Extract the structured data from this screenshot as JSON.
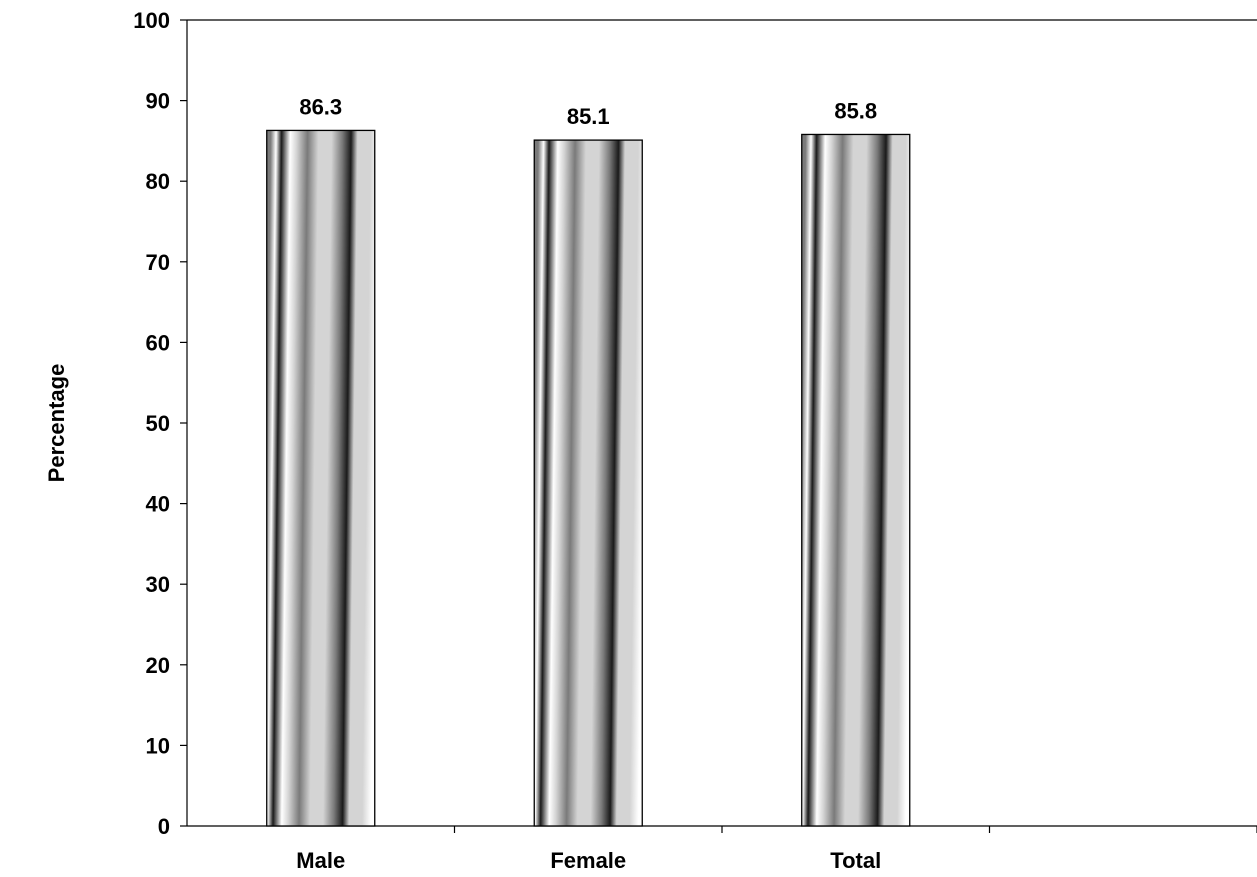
{
  "chart_data": {
    "type": "bar",
    "categories": [
      "Male",
      "Female",
      "Total"
    ],
    "values": [
      86.3,
      85.1,
      85.8
    ],
    "data_labels": [
      "86.3",
      "85.1",
      "85.8"
    ],
    "title": "",
    "xlabel": "",
    "ylabel": "Percentage",
    "ylim": [
      0,
      100
    ],
    "yticks": [
      0,
      10,
      20,
      30,
      40,
      50,
      60,
      70,
      80,
      90,
      100
    ],
    "ytick_labels": [
      "0",
      "10",
      "20",
      "30",
      "40",
      "50",
      "60",
      "70",
      "80",
      "90",
      "100"
    ],
    "category_slots": 4,
    "grid": false,
    "legend": "none",
    "colors": {
      "bar_dark": "#1a1a1a",
      "bar_mid": "#7a7a7a",
      "bar_light": "#d4d4d4",
      "bar_white": "#ffffff",
      "axis": "#000000"
    }
  }
}
